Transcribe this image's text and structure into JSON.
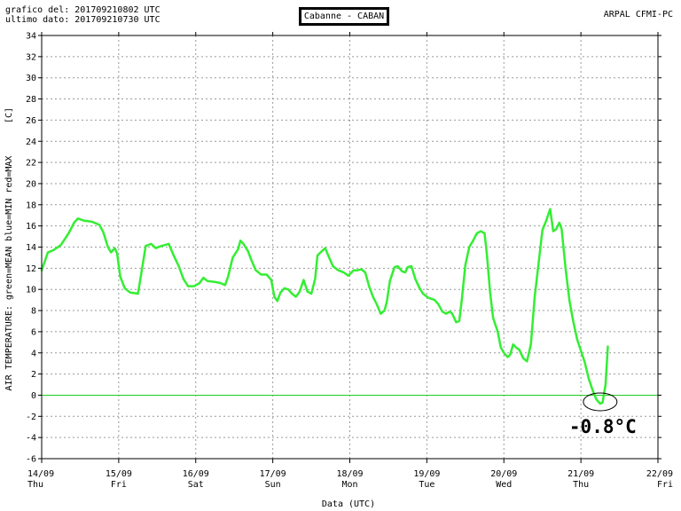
{
  "header": {
    "generated_line": "grafico del: 201709210802 UTC",
    "last_data_line": "ultimo dato: 201709210730 UTC",
    "station": "Cabanne - CABAN",
    "source": "ARPAL CFMI-PC"
  },
  "colors": {
    "mean": "#33ee33",
    "zero_line": "#22cc22",
    "grid": "#999999",
    "axes": "#000000"
  },
  "chart_data": {
    "type": "line",
    "title": "Cabanne - CABAN",
    "xlabel": "Data (UTC)",
    "ylabel": "AIR TEMPERATURE: green=MEAN  blue=MIN  red=MAX",
    "unit_label": "[C]",
    "ylim": [
      -6,
      34
    ],
    "yticks": [
      -6,
      -4,
      -2,
      0,
      2,
      4,
      6,
      8,
      10,
      12,
      14,
      16,
      18,
      20,
      22,
      24,
      26,
      28,
      30,
      32,
      34
    ],
    "xlim": [
      0,
      8
    ],
    "xticks": [
      {
        "x": 0,
        "date": "14/09",
        "day": "Thu"
      },
      {
        "x": 1,
        "date": "15/09",
        "day": "Fri"
      },
      {
        "x": 2,
        "date": "16/09",
        "day": "Sat"
      },
      {
        "x": 3,
        "date": "17/09",
        "day": "Sun"
      },
      {
        "x": 4,
        "date": "18/09",
        "day": "Mon"
      },
      {
        "x": 5,
        "date": "19/09",
        "day": "Tue"
      },
      {
        "x": 6,
        "date": "20/09",
        "day": "Wed"
      },
      {
        "x": 7,
        "date": "21/09",
        "day": "Thu"
      },
      {
        "x": 8,
        "date": "22/09",
        "day": "Fri"
      }
    ],
    "grid": true,
    "reference_line": 0,
    "series": [
      {
        "color": "#33ee33",
        "points": [
          [
            0.0,
            11.8
          ],
          [
            0.08,
            13.5
          ],
          [
            0.15,
            13.7
          ],
          [
            0.25,
            14.2
          ],
          [
            0.35,
            15.3
          ],
          [
            0.42,
            16.3
          ],
          [
            0.47,
            16.7
          ],
          [
            0.55,
            16.5
          ],
          [
            0.65,
            16.4
          ],
          [
            0.75,
            16.1
          ],
          [
            0.8,
            15.4
          ],
          [
            0.86,
            14.0
          ],
          [
            0.9,
            13.5
          ],
          [
            0.95,
            13.9
          ],
          [
            0.98,
            13.4
          ],
          [
            1.02,
            11.2
          ],
          [
            1.08,
            10.1
          ],
          [
            1.15,
            9.7
          ],
          [
            1.25,
            9.6
          ],
          [
            1.3,
            11.8
          ],
          [
            1.35,
            14.1
          ],
          [
            1.42,
            14.3
          ],
          [
            1.48,
            13.9
          ],
          [
            1.55,
            14.1
          ],
          [
            1.65,
            14.3
          ],
          [
            1.72,
            13.1
          ],
          [
            1.78,
            12.2
          ],
          [
            1.84,
            11.0
          ],
          [
            1.9,
            10.3
          ],
          [
            1.98,
            10.3
          ],
          [
            2.05,
            10.6
          ],
          [
            2.1,
            11.1
          ],
          [
            2.15,
            10.8
          ],
          [
            2.25,
            10.7
          ],
          [
            2.32,
            10.6
          ],
          [
            2.38,
            10.4
          ],
          [
            2.42,
            11.2
          ],
          [
            2.48,
            13.0
          ],
          [
            2.55,
            13.8
          ],
          [
            2.58,
            14.6
          ],
          [
            2.62,
            14.3
          ],
          [
            2.68,
            13.6
          ],
          [
            2.72,
            12.8
          ],
          [
            2.78,
            11.8
          ],
          [
            2.85,
            11.4
          ],
          [
            2.92,
            11.4
          ],
          [
            2.98,
            10.9
          ],
          [
            3.02,
            9.3
          ],
          [
            3.06,
            8.9
          ],
          [
            3.1,
            9.7
          ],
          [
            3.15,
            10.1
          ],
          [
            3.2,
            10.0
          ],
          [
            3.25,
            9.6
          ],
          [
            3.3,
            9.3
          ],
          [
            3.35,
            9.8
          ],
          [
            3.4,
            10.9
          ],
          [
            3.45,
            9.8
          ],
          [
            3.5,
            9.6
          ],
          [
            3.55,
            11.0
          ],
          [
            3.58,
            13.2
          ],
          [
            3.62,
            13.5
          ],
          [
            3.68,
            13.9
          ],
          [
            3.72,
            13.2
          ],
          [
            3.78,
            12.2
          ],
          [
            3.85,
            11.8
          ],
          [
            3.92,
            11.6
          ],
          [
            3.98,
            11.3
          ],
          [
            4.05,
            11.8
          ],
          [
            4.1,
            11.8
          ],
          [
            4.15,
            11.9
          ],
          [
            4.2,
            11.6
          ],
          [
            4.25,
            10.3
          ],
          [
            4.3,
            9.3
          ],
          [
            4.35,
            8.6
          ],
          [
            4.4,
            7.7
          ],
          [
            4.45,
            8.0
          ],
          [
            4.48,
            8.8
          ],
          [
            4.52,
            10.8
          ],
          [
            4.58,
            12.1
          ],
          [
            4.62,
            12.2
          ],
          [
            4.68,
            11.7
          ],
          [
            4.72,
            11.6
          ],
          [
            4.75,
            12.1
          ],
          [
            4.8,
            12.2
          ],
          [
            4.85,
            11.0
          ],
          [
            4.9,
            10.2
          ],
          [
            4.95,
            9.6
          ],
          [
            5.02,
            9.2
          ],
          [
            5.1,
            9.0
          ],
          [
            5.15,
            8.6
          ],
          [
            5.2,
            7.9
          ],
          [
            5.25,
            7.7
          ],
          [
            5.3,
            7.9
          ],
          [
            5.33,
            7.7
          ],
          [
            5.38,
            6.9
          ],
          [
            5.42,
            7.0
          ],
          [
            5.45,
            8.8
          ],
          [
            5.5,
            12.3
          ],
          [
            5.55,
            14.0
          ],
          [
            5.6,
            14.6
          ],
          [
            5.65,
            15.3
          ],
          [
            5.7,
            15.5
          ],
          [
            5.75,
            15.3
          ],
          [
            5.78,
            13.3
          ],
          [
            5.82,
            9.8
          ],
          [
            5.86,
            7.3
          ],
          [
            5.92,
            6.0
          ],
          [
            5.96,
            4.5
          ],
          [
            6.0,
            4.0
          ],
          [
            6.05,
            3.6
          ],
          [
            6.08,
            3.8
          ],
          [
            6.12,
            4.8
          ],
          [
            6.16,
            4.5
          ],
          [
            6.2,
            4.3
          ],
          [
            6.25,
            3.5
          ],
          [
            6.3,
            3.2
          ],
          [
            6.35,
            4.8
          ],
          [
            6.4,
            9.3
          ],
          [
            6.45,
            12.4
          ],
          [
            6.5,
            15.6
          ],
          [
            6.55,
            16.5
          ],
          [
            6.6,
            17.6
          ],
          [
            6.64,
            15.5
          ],
          [
            6.68,
            15.7
          ],
          [
            6.72,
            16.3
          ],
          [
            6.75,
            15.7
          ],
          [
            6.8,
            12.0
          ],
          [
            6.85,
            9.0
          ],
          [
            6.9,
            7.0
          ],
          [
            6.95,
            5.3
          ],
          [
            7.0,
            4.2
          ],
          [
            7.05,
            3.1
          ],
          [
            7.1,
            1.6
          ],
          [
            7.15,
            0.5
          ],
          [
            7.2,
            -0.4
          ],
          [
            7.25,
            -0.8
          ],
          [
            7.28,
            -0.7
          ],
          [
            7.32,
            1.0
          ],
          [
            7.35,
            4.6
          ]
        ]
      }
    ],
    "annotations": [
      {
        "text": "-0.8°C",
        "x": 7.25,
        "y": -0.8
      }
    ]
  }
}
